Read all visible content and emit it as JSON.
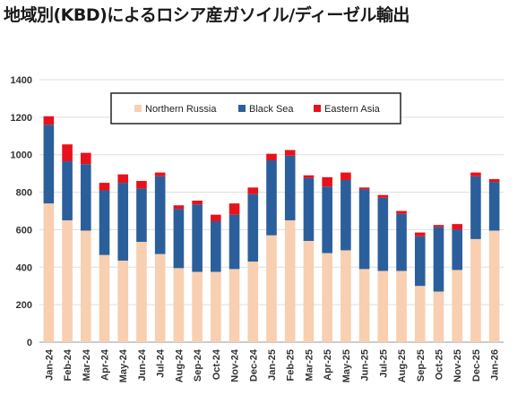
{
  "title": "地域別(KBD)によるロシア産ガソイル/ディーゼル輸出",
  "chart_data": {
    "type": "bar",
    "stacked": true,
    "categories": [
      "Jan-24",
      "Feb-24",
      "Mar-24",
      "Apr-24",
      "May-24",
      "Jun-24",
      "Jul-24",
      "Aug-24",
      "Sep-24",
      "Oct-24",
      "Nov-24",
      "Dec-24",
      "Jan-25",
      "Feb-25",
      "Mar-25",
      "Apr-25",
      "May-25",
      "Jun-25",
      "Jul-25",
      "Aug-25",
      "Sep-25",
      "Oct-25",
      "Nov-25",
      "Dec-25",
      "Jan-26"
    ],
    "series": [
      {
        "name": "Northern Russia",
        "color": "#f8cfb0",
        "values": [
          740,
          650,
          595,
          465,
          435,
          535,
          470,
          395,
          375,
          375,
          390,
          430,
          570,
          650,
          540,
          475,
          490,
          390,
          380,
          380,
          300,
          270,
          385,
          550,
          595
        ]
      },
      {
        "name": "Black Sea",
        "color": "#2b5f9c",
        "values": [
          420,
          315,
          355,
          345,
          415,
          285,
          415,
          315,
          360,
          270,
          290,
          360,
          400,
          345,
          335,
          355,
          375,
          425,
          390,
          305,
          265,
          345,
          215,
          335,
          260
        ]
      },
      {
        "name": "Eastern Asia",
        "color": "#e8121c",
        "values": [
          45,
          90,
          60,
          40,
          45,
          40,
          20,
          20,
          20,
          35,
          60,
          35,
          35,
          30,
          15,
          50,
          40,
          10,
          15,
          15,
          20,
          10,
          30,
          20,
          15
        ]
      }
    ],
    "ylim": [
      0,
      1400
    ],
    "yticks": [
      0,
      200,
      400,
      600,
      800,
      1000,
      1200,
      1400
    ],
    "grid": true,
    "legend": "top-center"
  }
}
